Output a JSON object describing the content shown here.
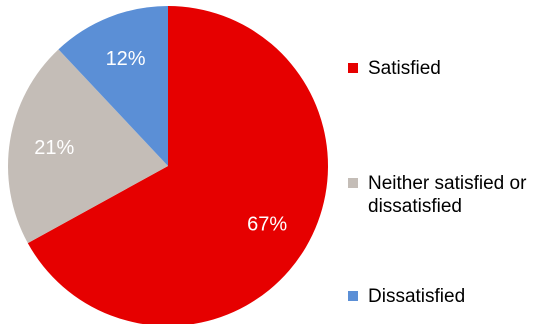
{
  "chart_data": {
    "type": "pie",
    "title": "",
    "categories": [
      "Satisfied",
      "Neither satisfied or dissatisfied",
      "Dissatisfied"
    ],
    "values": [
      67,
      21,
      12
    ],
    "labels": [
      "67%",
      "21%",
      "12%"
    ],
    "colors": [
      "#e60000",
      "#c4bdb7",
      "#5b8fd6"
    ],
    "start_angle_deg": 0,
    "direction": "clockwise",
    "legend_position": "right"
  }
}
